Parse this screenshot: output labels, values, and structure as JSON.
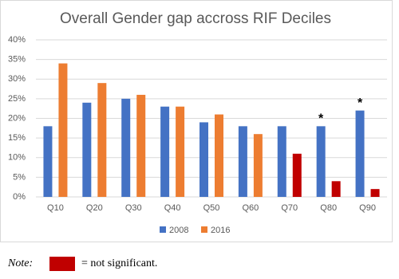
{
  "chart_data": {
    "type": "bar",
    "title": "Overall Gender gap accross RIF Deciles",
    "categories": [
      "Q10",
      "Q20",
      "Q30",
      "Q40",
      "Q50",
      "Q60",
      "Q70",
      "Q80",
      "Q90"
    ],
    "series": [
      {
        "name": "2008",
        "color": "#4472c4",
        "values": [
          18,
          24,
          25,
          23,
          19,
          18,
          18,
          18,
          22
        ]
      },
      {
        "name": "2016",
        "color": "#ed7d31",
        "values": [
          34,
          29,
          26,
          23,
          21,
          16,
          11,
          4,
          2
        ],
        "point_colors": [
          "#ed7d31",
          "#ed7d31",
          "#ed7d31",
          "#ed7d31",
          "#ed7d31",
          "#ed7d31",
          "#c00000",
          "#c00000",
          "#c00000"
        ]
      }
    ],
    "ylim": [
      0,
      40
    ],
    "yticks": [
      {
        "value": 0,
        "label": "0%"
      },
      {
        "value": 5,
        "label": "5%"
      },
      {
        "value": 10,
        "label": "10%"
      },
      {
        "value": 15,
        "label": "15%"
      },
      {
        "value": 20,
        "label": "20%"
      },
      {
        "value": 25,
        "label": "25%"
      },
      {
        "value": 30,
        "label": "30%"
      },
      {
        "value": 35,
        "label": "35%"
      },
      {
        "value": 40,
        "label": "40%"
      }
    ],
    "grid": true,
    "legend": "bottom",
    "annotations": [
      {
        "text": "*",
        "category": "Q80",
        "series": "2008"
      },
      {
        "text": "*",
        "category": "Q90",
        "series": "2008"
      }
    ]
  },
  "note": {
    "label": "Note:",
    "text": "= not significant.",
    "color": "#c00000"
  }
}
